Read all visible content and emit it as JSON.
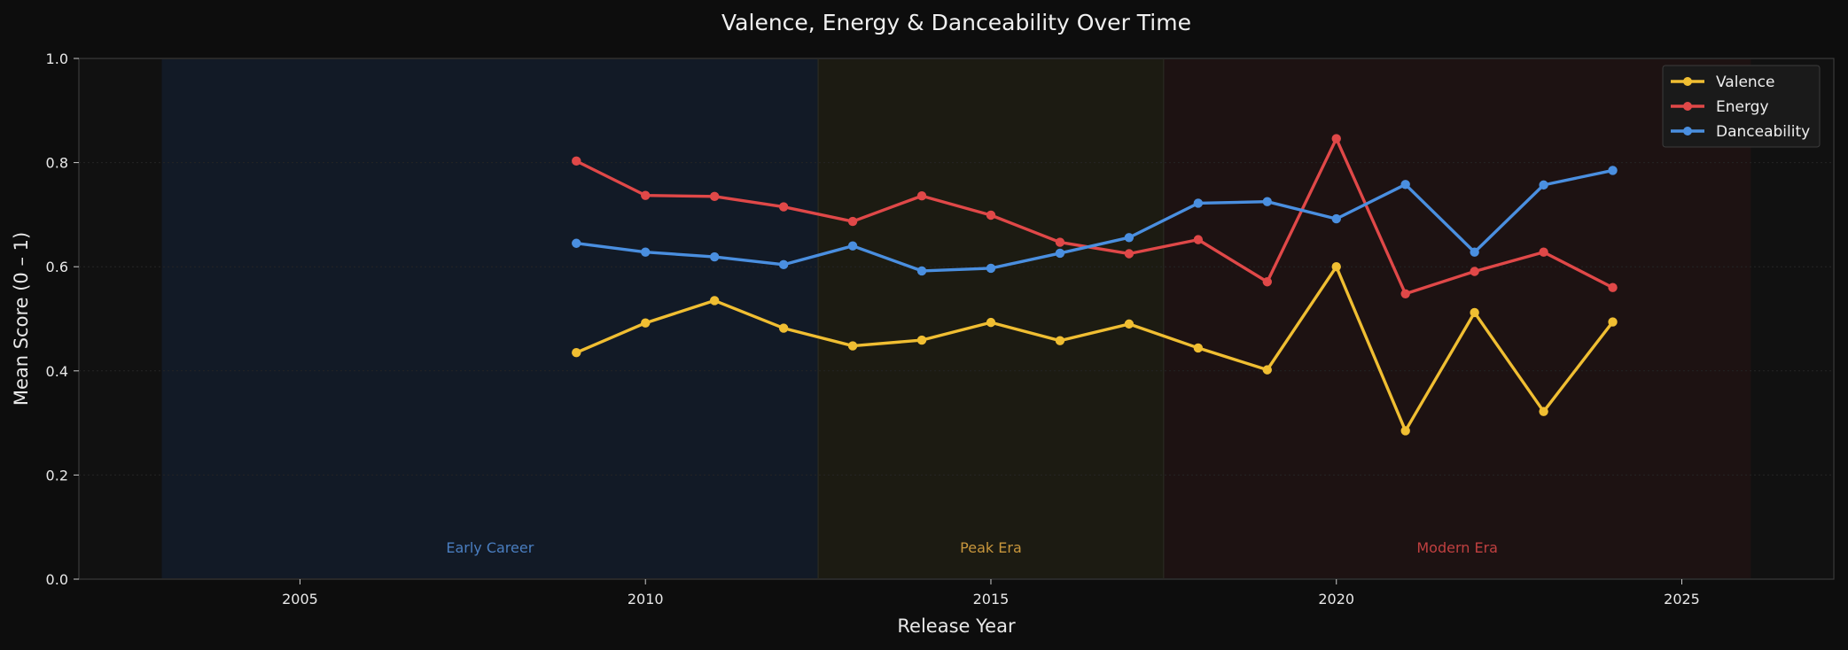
{
  "chart_data": {
    "type": "line",
    "title": "Valence, Energy & Danceability Over Time",
    "xlabel": "Release Year",
    "ylabel": "Mean Score (0 – 1)",
    "xlim": [
      2001.8,
      2027.2
    ],
    "ylim": [
      0,
      1
    ],
    "xticks": [
      2005,
      2010,
      2015,
      2020,
      2025
    ],
    "yticks": [
      0.0,
      0.2,
      0.4,
      0.6,
      0.8,
      1.0
    ],
    "ytick_labels": [
      "0.0",
      "0.2",
      "0.4",
      "0.6",
      "0.8",
      "1.0"
    ],
    "grid": true,
    "legend_position": "top-right",
    "x": [
      2009,
      2010,
      2011,
      2012,
      2013,
      2014,
      2015,
      2016,
      2017,
      2018,
      2019,
      2020,
      2021,
      2022,
      2023,
      2024
    ],
    "series": [
      {
        "name": "Valence",
        "color": "#f0be32",
        "values": [
          0.435,
          0.492,
          0.535,
          0.482,
          0.448,
          0.459,
          0.493,
          0.458,
          0.49,
          0.444,
          0.402,
          0.6,
          0.285,
          0.512,
          0.322,
          0.494
        ]
      },
      {
        "name": "Energy",
        "color": "#e04848",
        "values": [
          0.803,
          0.737,
          0.735,
          0.715,
          0.687,
          0.736,
          0.699,
          0.647,
          0.625,
          0.652,
          0.571,
          0.846,
          0.548,
          0.591,
          0.628,
          0.56
        ]
      },
      {
        "name": "Danceability",
        "color": "#4a8fe0",
        "values": [
          0.645,
          0.628,
          0.619,
          0.604,
          0.64,
          0.592,
          0.597,
          0.626,
          0.656,
          0.722,
          0.725,
          0.692,
          0.758,
          0.628,
          0.757,
          0.785
        ]
      }
    ],
    "eras": [
      {
        "label": "Early Career",
        "start": 2003,
        "end": 2012.5,
        "color": "#4a7ec0",
        "fill": "#121a26"
      },
      {
        "label": "Peak Era",
        "start": 2012.5,
        "end": 2017.5,
        "color": "#c8963c",
        "fill": "#1c1b12"
      },
      {
        "label": "Modern Era",
        "start": 2017.5,
        "end": 2026,
        "color": "#c04040",
        "fill": "#1d1212"
      }
    ]
  }
}
